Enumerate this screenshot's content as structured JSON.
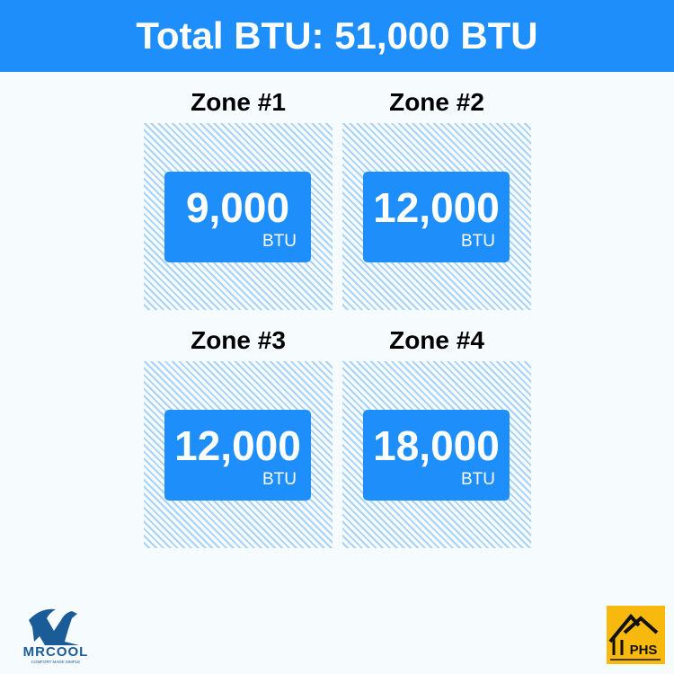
{
  "header": {
    "title": "Total BTU: 51,000 BTU"
  },
  "zones": [
    {
      "title": "Zone #1",
      "value": "9,000",
      "unit": "BTU"
    },
    {
      "title": "Zone #2",
      "value": "12,000",
      "unit": "BTU"
    },
    {
      "title": "Zone #3",
      "value": "12,000",
      "unit": "BTU"
    },
    {
      "title": "Zone #4",
      "value": "18,000",
      "unit": "BTU"
    }
  ],
  "logos": {
    "mrcool": "MRCOOL",
    "mrcool_tagline": "COMFORT MADE SIMPLE",
    "phs": "PHS"
  },
  "colors": {
    "accent": "#1e8efa",
    "hatch": "#a9d2f7",
    "phs": "#f8b90f",
    "mrcool": "#1a5c97"
  }
}
